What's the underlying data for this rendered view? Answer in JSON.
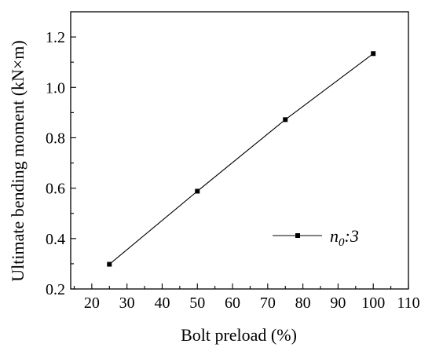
{
  "chart_data": {
    "type": "line",
    "xlabel": "Bolt preload (%)",
    "ylabel": "Ultimate bending moment (kN×m)",
    "xlim": [
      14,
      110
    ],
    "ylim": [
      0.2,
      1.3
    ],
    "x_ticks": [
      20,
      30,
      40,
      50,
      60,
      70,
      80,
      90,
      100,
      110
    ],
    "y_ticks": [
      0.2,
      0.4,
      0.6,
      0.8,
      1.0,
      1.2
    ],
    "y_tick_labels": [
      "0.2",
      "0.4",
      "0.6",
      "0.8",
      "1.0",
      "1.2"
    ],
    "series": [
      {
        "name": "n0:3",
        "x": [
          25,
          50,
          75,
          100
        ],
        "y": [
          0.298,
          0.588,
          0.872,
          1.134
        ],
        "marker": "square",
        "color": "#000000"
      }
    ],
    "legend": {
      "position": "bottom-right",
      "label_main": "n",
      "label_sub": "0",
      "label_rest": ":3"
    },
    "grid": false
  }
}
